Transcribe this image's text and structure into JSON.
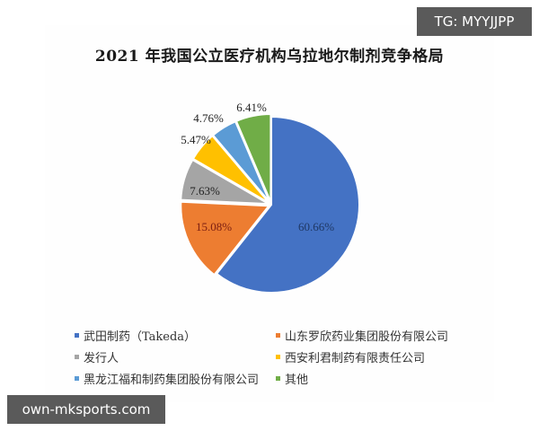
{
  "watermarks": {
    "top_right": "TG: MYYJJPP",
    "bottom_left": "own-mksports.com"
  },
  "chart_data": {
    "type": "pie",
    "title": "2021 年我国公立医疗机构乌拉地尔制剂竞争格局",
    "start_angle": "12 o'clock, clockwise",
    "slices": [
      {
        "label": "武田制药（Takeda）",
        "value": 60.66,
        "display": "60.66%",
        "color": "#4472C4",
        "label_color": "#1F3864"
      },
      {
        "label": "山东罗欣药业集团股份有限公司",
        "value": 15.08,
        "display": "15.08%",
        "color": "#ED7D31",
        "label_color": "#7B1E12"
      },
      {
        "label": "发行人",
        "value": 7.63,
        "display": "7.63%",
        "color": "#A5A5A5",
        "label_color": "#222222"
      },
      {
        "label": "西安利君制药有限责任公司",
        "value": 5.47,
        "display": "5.47%",
        "color": "#FFC000",
        "label_color": "#222222"
      },
      {
        "label": "黑龙江福和制药集团股份有限公司",
        "value": 4.76,
        "display": "4.76%",
        "color": "#5B9BD5",
        "label_color": "#222222"
      },
      {
        "label": "其他",
        "value": 6.41,
        "display": "6.41%",
        "color": "#70AD47",
        "label_color": "#222222"
      }
    ],
    "legend_order": [
      "武田制药（Takeda）",
      "山东罗欣药业集团股份有限公司",
      "发行人",
      "西安利君制药有限责任公司",
      "黑龙江福和制药集团股份有限公司",
      "其他"
    ],
    "legend_position": "bottom, 2 columns"
  }
}
